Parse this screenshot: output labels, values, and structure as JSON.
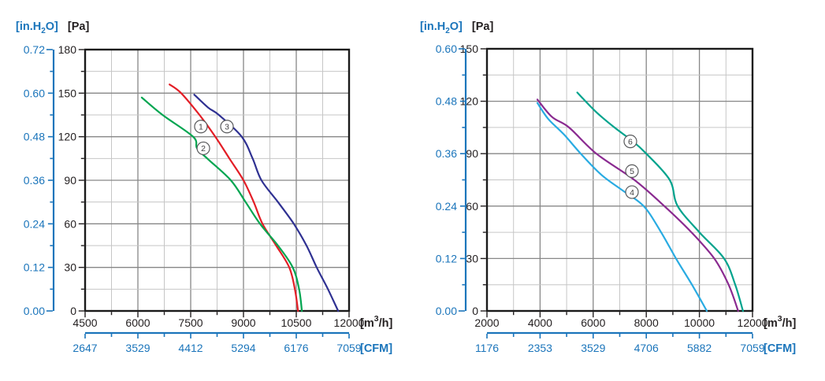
{
  "figure": {
    "description": "Fan performance curves: static pressure versus airflow, two charts with dual pressure axes (Pa / in.H2O) and dual flow axes (m3/h / CFM)",
    "background": "#ffffff"
  },
  "colors": {
    "axis_blue": "#1b75bb",
    "axis_black": "#231f20",
    "frame": "#1a1a1a",
    "grid_major": "#878787",
    "grid_minor": "#c6c6c6",
    "badge_stroke": "#58595b"
  },
  "chart_data": [
    {
      "type": "line",
      "y_axis_label": "[Pa]",
      "y2_axis_label": "[in.H₂O]",
      "y2_axis_label_parts": {
        "pre": "[in.H",
        "sub": "2",
        "post": "O]"
      },
      "x_axis_label": "[m³/h]",
      "x_axis_label_parts": {
        "pre": "[m",
        "sup": "3",
        "post": "/h]"
      },
      "x2_axis_label": "[CFM]",
      "grid": true,
      "x_axis": {
        "min": 4500,
        "max": 12000,
        "major_step": 1500,
        "minor_step": 750,
        "tick_labels": [
          "4500",
          "6000",
          "7500",
          "9000",
          "10500",
          "12000"
        ]
      },
      "y_axis": {
        "min": 0,
        "max": 180,
        "major_step": 30,
        "minor_step": 15,
        "tick_labels": [
          "0",
          "30",
          "60",
          "90",
          "120",
          "150",
          "180"
        ]
      },
      "y2_axis": {
        "tick_labels": [
          "0.00",
          "0.12",
          "0.24",
          "0.36",
          "0.48",
          "0.60",
          "0.72"
        ]
      },
      "x2_axis": {
        "tick_labels": [
          "2647",
          "3529",
          "4412",
          "5294",
          "6176",
          "7059"
        ]
      },
      "series": [
        {
          "name": "1",
          "color": "#e31e26",
          "label_at": [
            7790,
            127
          ],
          "points_m3h_pa": [
            [
              6900,
              156
            ],
            [
              7230,
              150
            ],
            [
              7750,
              135
            ],
            [
              8200,
              120
            ],
            [
              8600,
              105
            ],
            [
              9000,
              90
            ],
            [
              9290,
              75
            ],
            [
              9540,
              60
            ],
            [
              9930,
              45
            ],
            [
              10300,
              30
            ],
            [
              10460,
              15
            ],
            [
              10550,
              0
            ]
          ]
        },
        {
          "name": "2",
          "color": "#00a550",
          "label_at": [
            7860,
            112
          ],
          "points_m3h_pa": [
            [
              6110,
              147
            ],
            [
              6700,
              135
            ],
            [
              7570,
              120
            ],
            [
              7680,
              112
            ],
            [
              7970,
              105
            ],
            [
              8640,
              90
            ],
            [
              9060,
              75
            ],
            [
              9470,
              60
            ],
            [
              9980,
              45
            ],
            [
              10400,
              30
            ],
            [
              10580,
              15
            ],
            [
              10660,
              0
            ]
          ]
        },
        {
          "name": "3",
          "color": "#2f3192",
          "label_at": [
            8530,
            127
          ],
          "points_m3h_pa": [
            [
              7600,
              149
            ],
            [
              8000,
              140
            ],
            [
              8300,
              135
            ],
            [
              8950,
              120
            ],
            [
              9260,
              105
            ],
            [
              9510,
              90
            ],
            [
              9980,
              75
            ],
            [
              10430,
              60
            ],
            [
              10790,
              45
            ],
            [
              11080,
              30
            ],
            [
              11400,
              15
            ],
            [
              11690,
              0
            ]
          ]
        }
      ]
    },
    {
      "type": "line",
      "y_axis_label": "[Pa]",
      "y2_axis_label": "[in.H₂O]",
      "y2_axis_label_parts": {
        "pre": "[in.H",
        "sub": "2",
        "post": "O]"
      },
      "x_axis_label": "[m³/h]",
      "x_axis_label_parts": {
        "pre": "[m",
        "sup": "3",
        "post": "/h]"
      },
      "x2_axis_label": "[CFM]",
      "grid": true,
      "x_axis": {
        "min": 2000,
        "max": 12000,
        "major_step": 2000,
        "minor_step": 1000,
        "tick_labels": [
          "2000",
          "4000",
          "6000",
          "8000",
          "10000",
          "12000"
        ]
      },
      "y_axis": {
        "min": 0,
        "max": 150,
        "major_step": 30,
        "minor_step": 15,
        "tick_labels": [
          "0",
          "30",
          "60",
          "90",
          "120",
          "150"
        ]
      },
      "y2_axis": {
        "tick_labels": [
          "0.00",
          "0.12",
          "0.24",
          "0.36",
          "0.48",
          "0.60"
        ]
      },
      "x2_axis": {
        "tick_labels": [
          "1176",
          "2353",
          "3529",
          "4706",
          "5882",
          "7059"
        ]
      },
      "series": [
        {
          "name": "4",
          "color": "#29abe2",
          "label_at": [
            7460,
            68
          ],
          "points_m3h_pa": [
            [
              3900,
              119
            ],
            [
              4300,
              110
            ],
            [
              4900,
              101
            ],
            [
              5530,
              90
            ],
            [
              6300,
              78
            ],
            [
              7100,
              69
            ],
            [
              7900,
              60
            ],
            [
              8520,
              46
            ],
            [
              9120,
              30
            ],
            [
              9720,
              15
            ],
            [
              10280,
              0
            ]
          ]
        },
        {
          "name": "5",
          "color": "#8a2a90",
          "label_at": [
            7460,
            80
          ],
          "points_m3h_pa": [
            [
              3900,
              121
            ],
            [
              4450,
              111
            ],
            [
              5090,
              105
            ],
            [
              6120,
              90
            ],
            [
              7550,
              75
            ],
            [
              8680,
              60
            ],
            [
              9700,
              45
            ],
            [
              10560,
              30
            ],
            [
              11100,
              15
            ],
            [
              11460,
              0
            ]
          ]
        },
        {
          "name": "6",
          "color": "#00a38d",
          "label_at": [
            7400,
            97
          ],
          "points_m3h_pa": [
            [
              5400,
              125
            ],
            [
              6100,
              114
            ],
            [
              6800,
              105
            ],
            [
              7500,
              97
            ],
            [
              8000,
              90
            ],
            [
              8880,
              75
            ],
            [
              9180,
              60
            ],
            [
              10000,
              45
            ],
            [
              10930,
              30
            ],
            [
              11350,
              15
            ],
            [
              11640,
              0
            ]
          ]
        }
      ]
    }
  ]
}
